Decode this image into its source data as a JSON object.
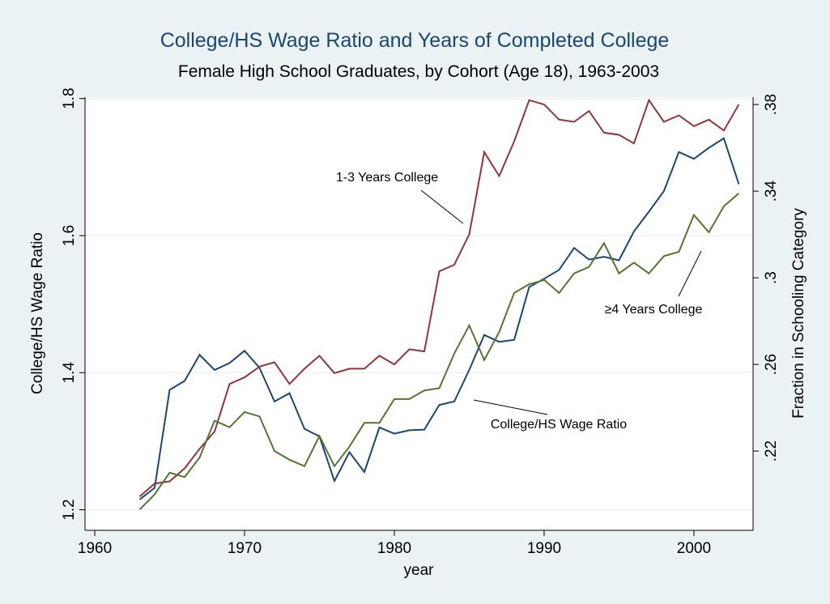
{
  "chart_data": {
    "type": "line",
    "title": "College/HS Wage Ratio and Years of Completed College",
    "subtitle": "Female High School Graduates, by Cohort (Age 18), 1963-2003",
    "x_label": "year",
    "y_label": "College/HS Wage Ratio",
    "y2_label": "Fraction in Schooling Category",
    "x": [
      1963,
      1964,
      1965,
      1966,
      1967,
      1968,
      1969,
      1970,
      1971,
      1972,
      1973,
      1974,
      1975,
      1976,
      1977,
      1978,
      1979,
      1980,
      1981,
      1982,
      1983,
      1984,
      1985,
      1986,
      1987,
      1988,
      1989,
      1990,
      1991,
      1992,
      1993,
      1994,
      1995,
      1996,
      1997,
      1998,
      1999,
      2000,
      2001,
      2002,
      2003
    ],
    "series": [
      {
        "name": "College/HS Wage Ratio",
        "color": "#1a476f",
        "axis": "y",
        "values": [
          1.215,
          1.232,
          1.375,
          1.388,
          1.426,
          1.404,
          1.414,
          1.432,
          1.407,
          1.358,
          1.37,
          1.318,
          1.307,
          1.242,
          1.284,
          1.255,
          1.32,
          1.311,
          1.316,
          1.317,
          1.353,
          1.358,
          1.404,
          1.455,
          1.445,
          1.448,
          1.525,
          1.537,
          1.55,
          1.582,
          1.565,
          1.569,
          1.564,
          1.606,
          1.635,
          1.665,
          1.722,
          1.712,
          1.728,
          1.742,
          1.675
        ]
      },
      {
        "name": "1-3 Years College",
        "color": "#90353b",
        "axis": "y2",
        "values": [
          0.199,
          0.205,
          0.206,
          0.212,
          0.221,
          0.229,
          0.251,
          0.254,
          0.259,
          0.261,
          0.251,
          0.258,
          0.264,
          0.256,
          0.258,
          0.258,
          0.264,
          0.26,
          0.267,
          0.266,
          0.303,
          0.306,
          0.32,
          0.358,
          0.347,
          0.363,
          0.382,
          0.38,
          0.373,
          0.372,
          0.377,
          0.367,
          0.366,
          0.362,
          0.382,
          0.372,
          0.375,
          0.37,
          0.373,
          0.368,
          0.38
        ]
      },
      {
        "name": "≥4 Years College",
        "color": "#55752f",
        "axis": "y2",
        "values": [
          0.193,
          0.2,
          0.21,
          0.208,
          0.217,
          0.234,
          0.231,
          0.238,
          0.236,
          0.22,
          0.216,
          0.213,
          0.227,
          0.213,
          0.222,
          0.233,
          0.233,
          0.244,
          0.244,
          0.248,
          0.249,
          0.265,
          0.278,
          0.262,
          0.275,
          0.293,
          0.297,
          0.299,
          0.293,
          0.302,
          0.305,
          0.316,
          0.302,
          0.307,
          0.302,
          0.31,
          0.312,
          0.329,
          0.321,
          0.333,
          0.339
        ]
      }
    ],
    "xlim": [
      1959.35,
      2003.95
    ],
    "xticks": [
      1960,
      1970,
      1980,
      1990,
      2000
    ],
    "ylim": [
      1.17,
      1.802
    ],
    "yticks": [
      1.2,
      1.4,
      1.6,
      1.8
    ],
    "y2lim": [
      0.1834,
      0.3834
    ],
    "y2ticks": [
      {
        "value": 0.22,
        "label": ".22"
      },
      {
        "value": 0.26,
        "label": ".26"
      },
      {
        "value": 0.3,
        "label": ".3"
      },
      {
        "value": 0.34,
        "label": ".34"
      },
      {
        "value": 0.38,
        "label": ".38"
      }
    ],
    "grid": true
  }
}
